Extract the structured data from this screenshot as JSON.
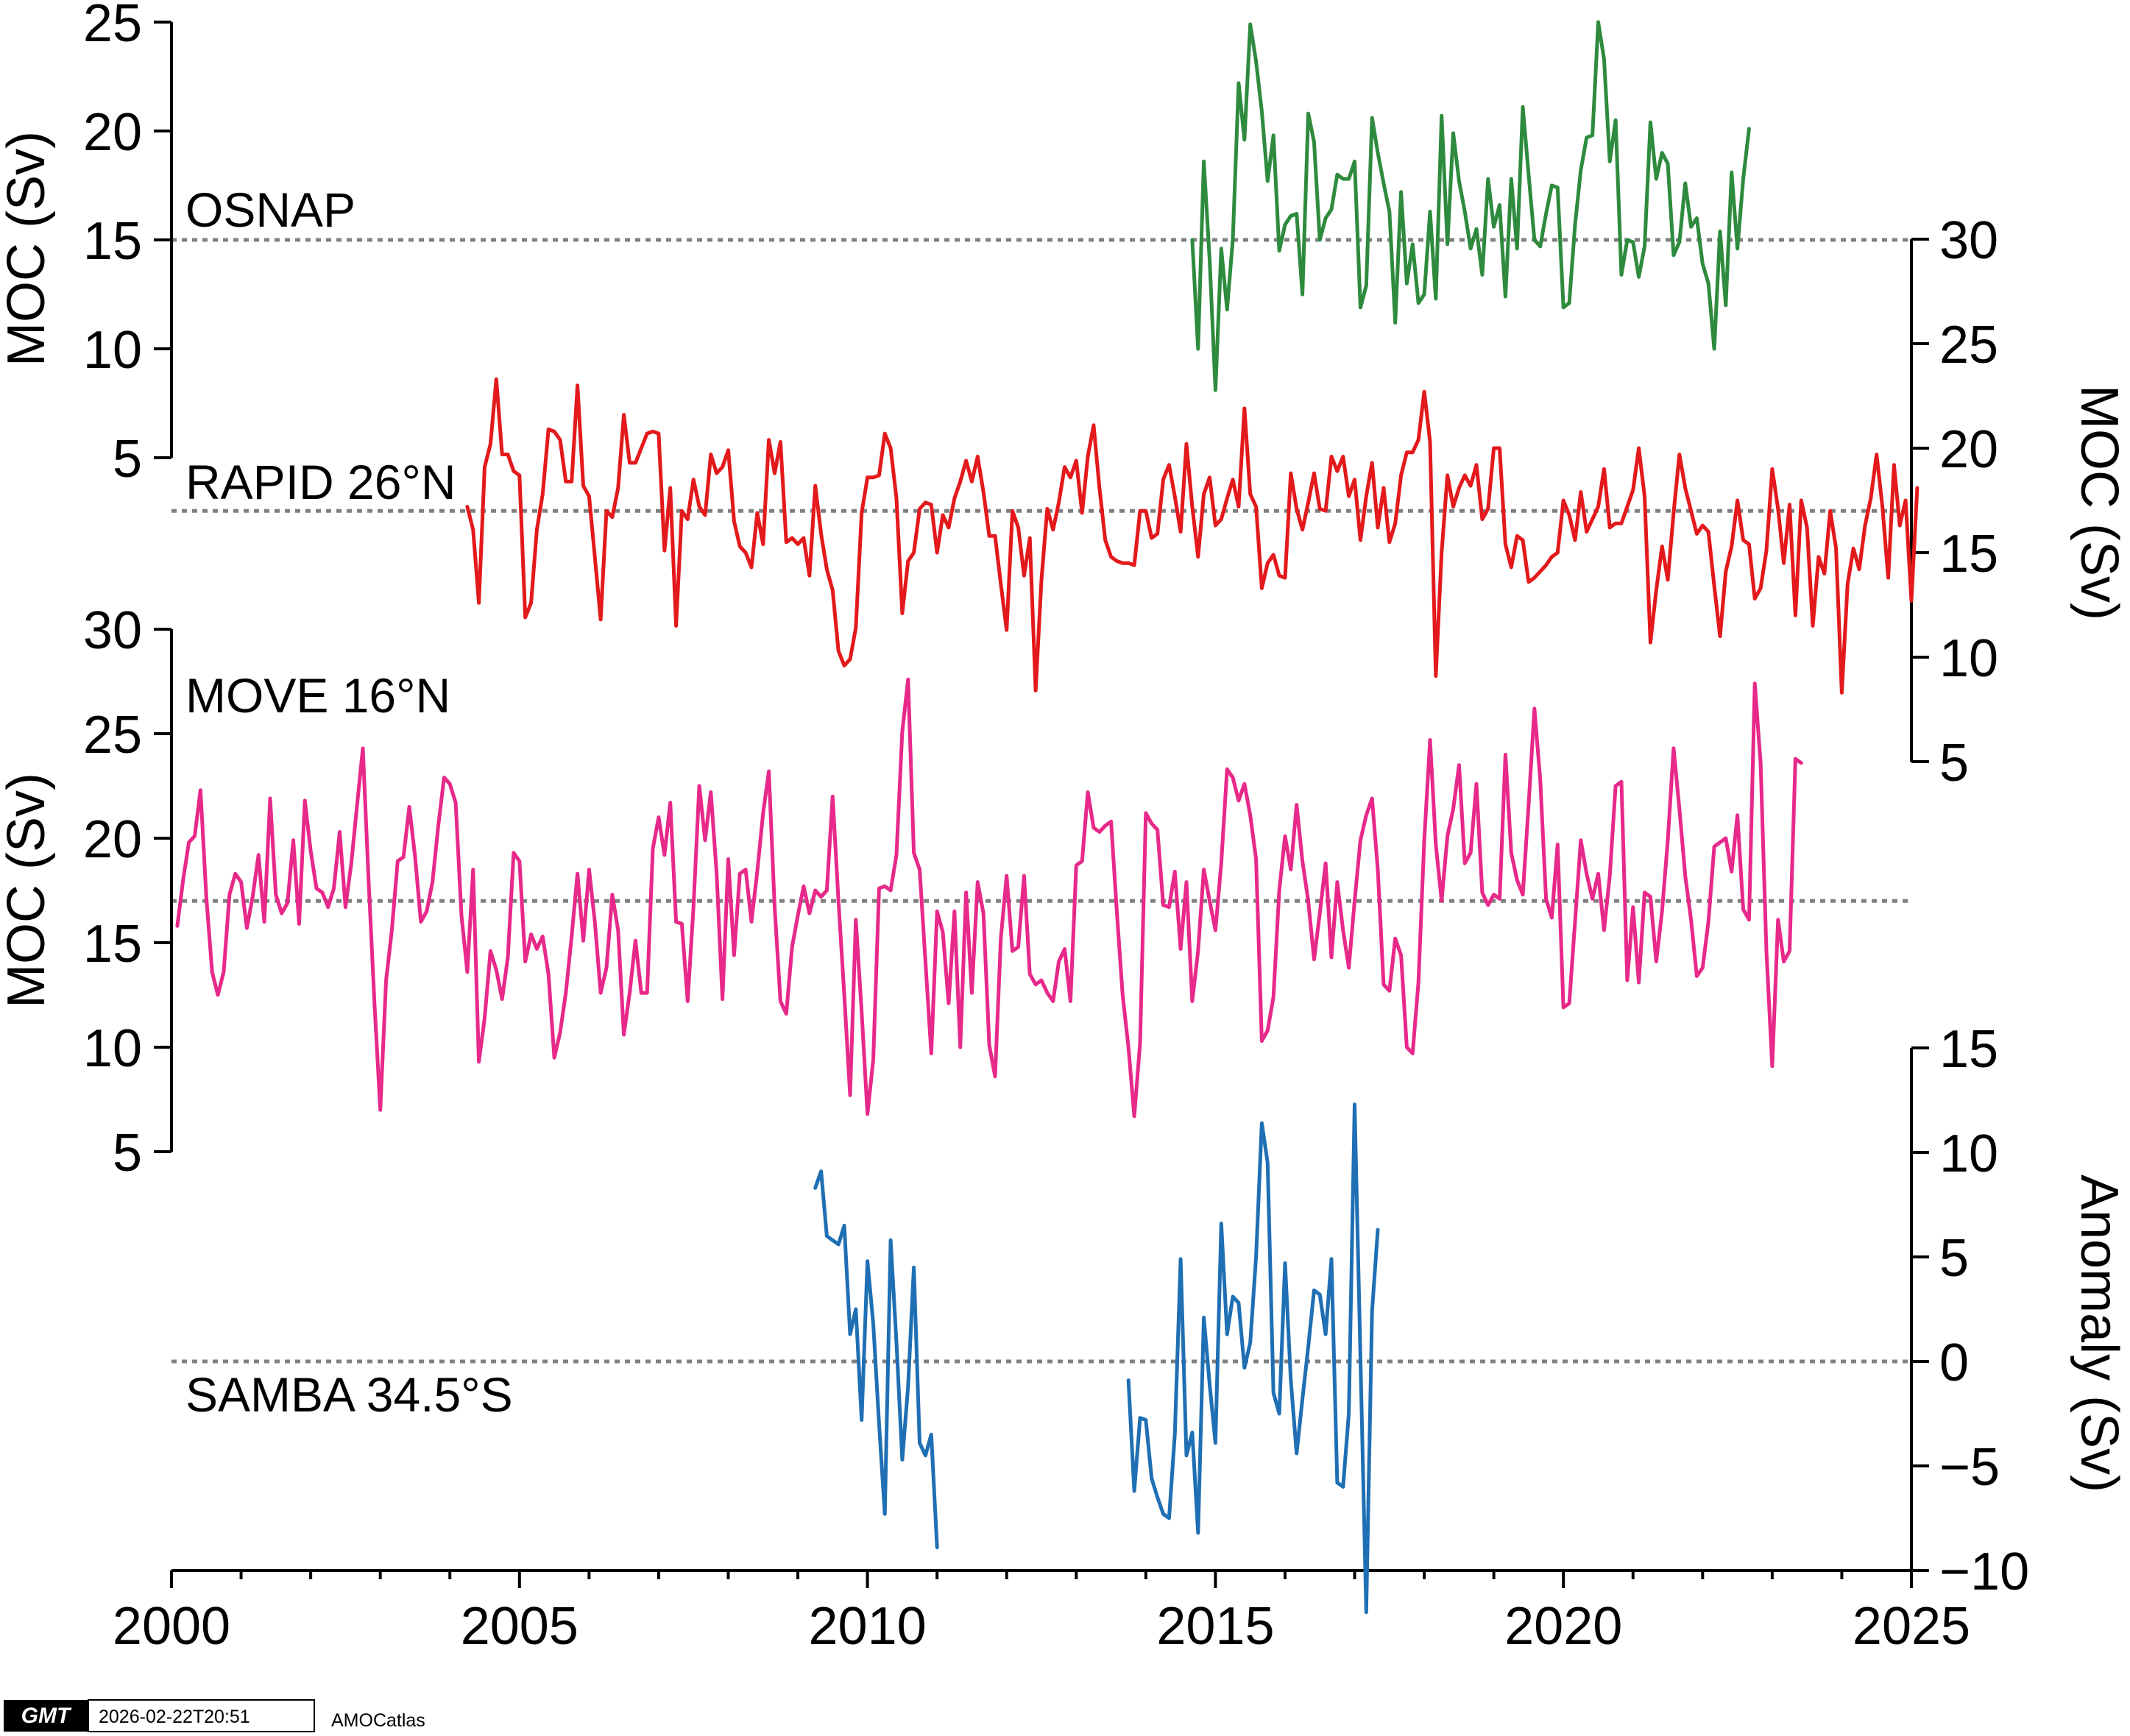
{
  "footer": {
    "logo_text": "GMT",
    "timestamp": "2026-02-22T20:51",
    "source": "AMOCatlas"
  },
  "colors": {
    "osnap": "#2e8b3e",
    "rapid": "#e3191c",
    "move": "#e7298a",
    "samba": "#1f6fb4",
    "reference": "#808080"
  },
  "chart_data": [
    {
      "type": "line",
      "id": "osnap",
      "label": "OSNAP",
      "ylabel": "MOC (Sv)",
      "yaxis_side": "left",
      "ylim": [
        5,
        25
      ],
      "yticks": [
        5,
        10,
        15,
        20,
        25
      ],
      "reference": 15,
      "start": 2014.6667,
      "step": 0.0833333,
      "values": [
        15.0,
        10.0,
        18.6,
        14.1,
        8.1,
        14.6,
        11.8,
        15.0,
        22.2,
        19.6,
        24.9,
        23.2,
        20.9,
        17.7,
        19.8,
        14.5,
        15.7,
        16.1,
        16.2,
        12.5,
        20.8,
        19.5,
        15.0,
        16.0,
        16.4,
        18.0,
        17.8,
        17.8,
        18.6,
        11.9,
        12.9,
        20.6,
        19.0,
        17.6,
        16.3,
        11.2,
        17.2,
        13.0,
        14.8,
        12.1,
        12.5,
        16.3,
        12.3,
        20.7,
        14.8,
        19.9,
        17.7,
        16.3,
        14.6,
        15.5,
        13.4,
        17.8,
        15.6,
        16.6,
        12.4,
        17.8,
        14.6,
        21.1,
        18.0,
        15.0,
        14.7,
        16.2,
        17.5,
        17.4,
        11.9,
        12.1,
        15.7,
        18.2,
        19.7,
        19.8,
        25.0,
        23.3,
        18.6,
        20.5,
        13.4,
        15.0,
        14.9,
        13.3,
        14.7,
        20.4,
        17.8,
        19.0,
        18.5,
        14.3,
        14.9,
        17.6,
        15.6,
        16.0,
        13.9,
        13.0,
        10.0,
        15.4,
        12.0,
        18.1,
        14.6,
        17.8,
        20.1
      ]
    },
    {
      "type": "line",
      "id": "rapid",
      "label": "RAPID 26°N",
      "ylabel": "MOC (Sv)",
      "yaxis_side": "right",
      "ylim": [
        5,
        30
      ],
      "yticks": [
        5,
        10,
        15,
        20,
        25,
        30
      ],
      "reference": 17,
      "start": 2004.25,
      "step": 0.0833333,
      "values": [
        17.2,
        16.1,
        12.6,
        19.1,
        20.2,
        23.3,
        19.7,
        19.7,
        18.9,
        18.7,
        11.9,
        12.6,
        16.1,
        17.8,
        20.9,
        20.8,
        20.4,
        18.4,
        18.4,
        23.0,
        18.2,
        17.7,
        14.8,
        11.8,
        17.0,
        16.7,
        18.1,
        21.6,
        19.3,
        19.3,
        20.0,
        20.7,
        20.8,
        20.7,
        15.1,
        18.1,
        11.5,
        17.0,
        16.6,
        18.5,
        17.2,
        16.8,
        19.7,
        18.8,
        19.1,
        19.9,
        16.5,
        15.3,
        15.0,
        14.3,
        16.9,
        15.4,
        20.4,
        18.8,
        20.3,
        15.5,
        15.7,
        15.4,
        15.7,
        13.9,
        18.2,
        15.9,
        14.2,
        13.2,
        10.3,
        9.6,
        9.9,
        11.4,
        16.9,
        18.6,
        18.6,
        18.7,
        20.7,
        20.0,
        17.6,
        12.1,
        14.6,
        15.0,
        17.1,
        17.4,
        17.3,
        15.0,
        16.8,
        16.2,
        17.6,
        18.4,
        19.4,
        18.4,
        19.6,
        17.9,
        15.8,
        15.8,
        13.5,
        11.3,
        17.0,
        16.2,
        13.9,
        15.7,
        8.4,
        13.7,
        17.1,
        16.1,
        17.4,
        19.1,
        18.6,
        19.4,
        16.9,
        19.6,
        21.1,
        18.1,
        15.6,
        14.8,
        14.6,
        14.5,
        14.5,
        14.4,
        17.0,
        17.0,
        15.7,
        15.9,
        18.5,
        19.2,
        17.7,
        16.0,
        20.2,
        17.2,
        14.8,
        17.8,
        18.6,
        16.3,
        16.6,
        17.6,
        18.5,
        17.2,
        21.9,
        17.8,
        17.2,
        13.3,
        14.5,
        14.9,
        13.9,
        13.8,
        18.8,
        17.1,
        16.1,
        17.4,
        18.8,
        17.1,
        17.0,
        19.6,
        18.9,
        19.6,
        17.7,
        18.5,
        15.6,
        17.7,
        19.3,
        16.2,
        18.1,
        15.5,
        16.4,
        18.7,
        19.8,
        19.8,
        20.4,
        22.7,
        20.3,
        9.1,
        15.0,
        18.7,
        17.2,
        18.1,
        18.7,
        18.2,
        19.2,
        16.6,
        17.1,
        20.0,
        20.0,
        15.4,
        14.3,
        15.8,
        15.6,
        13.6,
        13.8,
        14.1,
        14.4,
        14.8,
        15.0,
        17.5,
        16.8,
        15.6,
        17.9,
        16.0,
        16.6,
        17.2,
        19.0,
        16.2,
        16.4,
        16.4,
        17.2,
        18.0,
        20.0,
        17.7,
        10.7,
        13.2,
        15.3,
        13.7,
        16.9,
        19.7,
        18.1,
        17.0,
        15.9,
        16.3,
        16.0,
        13.4,
        11.0,
        14.1,
        15.3,
        17.5,
        15.6,
        15.4,
        12.8,
        13.3,
        15.1,
        19.0,
        17.1,
        14.5,
        17.3,
        12.0,
        17.5,
        16.2,
        11.5,
        14.8,
        14.0,
        17.0,
        15.2,
        8.3,
        13.5,
        15.2,
        14.2,
        16.3,
        17.6,
        19.7,
        17.2,
        13.8,
        19.2,
        16.3,
        17.5,
        12.7,
        18.1
      ]
    },
    {
      "type": "line",
      "id": "move",
      "label": "MOVE 16°N",
      "ylabel": "MOC (Sv)",
      "yaxis_side": "left",
      "ylim": [
        5,
        30
      ],
      "yticks": [
        5,
        10,
        15,
        20,
        25,
        30
      ],
      "reference": 17,
      "start": 2000.0833,
      "step": 0.0833333,
      "values": [
        15.8,
        18.0,
        19.8,
        20.1,
        22.3,
        17.2,
        13.6,
        12.5,
        13.6,
        17.3,
        18.3,
        17.9,
        15.7,
        17.2,
        19.2,
        16.0,
        21.9,
        17.3,
        16.4,
        16.9,
        19.9,
        15.9,
        21.8,
        19.4,
        17.6,
        17.4,
        16.7,
        17.6,
        20.3,
        16.7,
        18.8,
        21.6,
        24.3,
        17.9,
        12.1,
        7.0,
        13.2,
        15.6,
        18.9,
        19.1,
        21.5,
        19.1,
        16.0,
        16.5,
        17.9,
        20.6,
        22.9,
        22.6,
        21.7,
        16.3,
        13.6,
        18.5,
        9.3,
        11.4,
        14.6,
        13.7,
        12.3,
        14.3,
        19.3,
        18.9,
        14.1,
        15.4,
        14.7,
        15.3,
        13.5,
        9.5,
        10.7,
        12.6,
        15.3,
        18.3,
        15.1,
        18.5,
        16.0,
        12.6,
        13.8,
        17.3,
        15.6,
        10.6,
        12.6,
        15.1,
        12.6,
        12.6,
        19.5,
        21.0,
        19.2,
        21.7,
        16.0,
        15.9,
        12.2,
        16.7,
        22.5,
        19.9,
        22.2,
        18.3,
        12.3,
        19.0,
        14.4,
        18.3,
        18.5,
        16.0,
        18.4,
        21.2,
        23.2,
        16.7,
        12.2,
        11.6,
        14.8,
        16.3,
        17.7,
        16.4,
        17.5,
        17.2,
        17.5,
        22.0,
        17.0,
        12.5,
        7.7,
        16.1,
        11.7,
        6.8,
        9.4,
        17.6,
        17.7,
        17.5,
        19.2,
        25.1,
        27.6,
        19.3,
        18.5,
        14.1,
        9.7,
        16.5,
        15.5,
        12.1,
        16.5,
        10.0,
        17.4,
        12.6,
        17.9,
        16.4,
        10.1,
        8.6,
        15.2,
        18.2,
        14.6,
        14.8,
        18.2,
        13.5,
        13.0,
        13.2,
        12.6,
        12.2,
        14.1,
        14.7,
        12.2,
        18.7,
        18.9,
        22.2,
        20.5,
        20.3,
        20.6,
        20.8,
        16.5,
        12.5,
        10.0,
        6.7,
        10.2,
        21.2,
        20.7,
        20.4,
        16.8,
        16.7,
        18.4,
        14.7,
        17.9,
        12.2,
        14.6,
        18.5,
        17.0,
        15.6,
        18.8,
        23.3,
        22.9,
        21.8,
        22.6,
        21.1,
        19.0,
        10.3,
        10.8,
        12.4,
        17.5,
        20.1,
        18.5,
        21.6,
        18.9,
        17.0,
        14.2,
        16.4,
        18.8,
        14.3,
        17.9,
        15.6,
        13.8,
        17.0,
        19.9,
        21.1,
        21.9,
        18.5,
        13.0,
        12.7,
        15.2,
        14.4,
        10.0,
        9.7,
        13.1,
        19.9,
        24.7,
        19.7,
        17.0,
        20.1,
        21.4,
        23.5,
        18.8,
        19.3,
        22.6,
        17.4,
        16.8,
        17.3,
        17.1,
        24.0,
        19.3,
        18.0,
        17.3,
        21.6,
        26.2,
        22.8,
        17.1,
        16.2,
        19.7,
        11.9,
        12.1,
        16.0,
        19.9,
        18.3,
        17.1,
        18.3,
        15.6,
        18.2,
        22.5,
        22.7,
        13.2,
        16.7,
        13.1,
        17.4,
        17.2,
        14.1,
        16.5,
        19.9,
        24.3,
        21.4,
        18.2,
        16.1,
        13.4,
        13.8,
        16.0,
        19.6,
        19.8,
        20.0,
        18.4,
        21.1,
        16.6,
        16.1,
        27.4,
        23.6,
        14.6,
        9.1,
        16.1,
        14.1,
        14.6,
        23.8,
        23.6
      ]
    },
    {
      "type": "line",
      "id": "samba",
      "label": "SAMBA 34.5°S",
      "ylabel": "Anomaly (Sv)",
      "yaxis_side": "right",
      "ylim": [
        -10,
        15
      ],
      "yticks": [
        -10,
        -5,
        0,
        5,
        10,
        15
      ],
      "tick_labels": [
        "−10",
        "−5",
        "0",
        "5",
        "10",
        "15"
      ],
      "reference": 0,
      "segments": [
        {
          "start": 2009.25,
          "step": 0.0833333,
          "values": [
            8.3,
            9.1,
            6.0,
            5.8,
            5.6,
            6.5,
            1.3,
            2.5,
            -2.8,
            4.8,
            1.8,
            -3.0,
            -7.3,
            5.8,
            0.9,
            -4.7,
            -1.2,
            4.5,
            -3.9,
            -4.5,
            -3.5,
            -8.9
          ]
        },
        {
          "start": 2013.75,
          "step": 0.0833333,
          "values": [
            -0.9,
            -6.2,
            -2.7,
            -2.8,
            -5.6,
            -6.5,
            -7.3,
            -7.5,
            -3.5,
            4.9,
            -4.5,
            -3.4,
            -8.2,
            2.1,
            -1.1,
            -3.9,
            6.6,
            1.3,
            3.1,
            2.8,
            -0.3,
            0.9,
            5.0,
            11.4,
            9.5,
            -1.5,
            -2.5,
            4.7,
            -0.9,
            -4.4,
            -1.8,
            0.7,
            3.4,
            3.2,
            1.3,
            4.9,
            -5.8,
            -6.0,
            -2.5,
            12.3,
            0.2,
            -12.0,
            2.4,
            6.3
          ]
        }
      ]
    }
  ],
  "xaxis": {
    "xlim": [
      2000,
      2025
    ],
    "xticks": [
      2000,
      2005,
      2010,
      2015,
      2020,
      2025
    ]
  }
}
